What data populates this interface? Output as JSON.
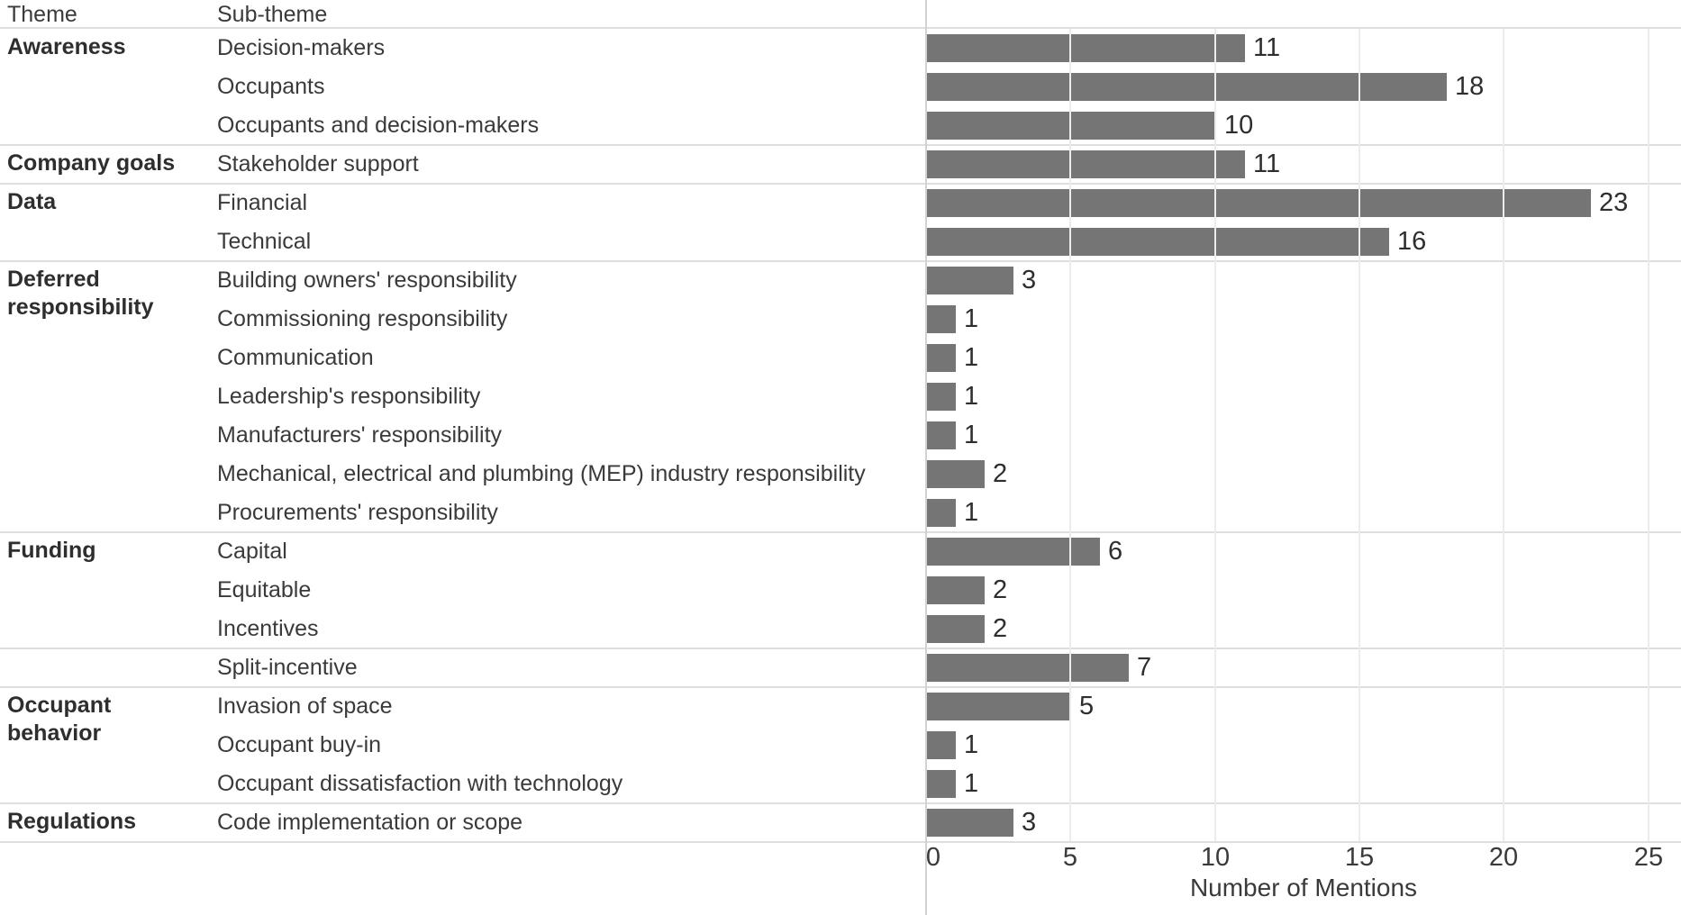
{
  "table": {
    "columns": [
      "Theme",
      "Sub-theme"
    ]
  },
  "chart_data": {
    "type": "bar",
    "orientation": "horizontal",
    "title": "",
    "xlabel": "Number of Mentions",
    "ylabel": "",
    "xlim": [
      0,
      25
    ],
    "x_ticks": [
      0,
      5,
      10,
      15,
      20,
      25
    ],
    "grid": "vertical-light",
    "bar_color": "#757575",
    "rows": [
      {
        "theme": "Awareness",
        "subtheme": "Decision-makers",
        "value": 11,
        "group_start": true
      },
      {
        "theme": "",
        "subtheme": "Occupants",
        "value": 18,
        "group_start": false
      },
      {
        "theme": "",
        "subtheme": "Occupants and decision-makers",
        "value": 10,
        "group_start": false
      },
      {
        "theme": "Company goals",
        "subtheme": "Stakeholder support",
        "value": 11,
        "group_start": true
      },
      {
        "theme": "Data",
        "subtheme": "Financial",
        "value": 23,
        "group_start": true
      },
      {
        "theme": "",
        "subtheme": "Technical",
        "value": 16,
        "group_start": false
      },
      {
        "theme": "Deferred responsibility",
        "subtheme": "Building owners' responsibility",
        "value": 3,
        "group_start": true
      },
      {
        "theme": "",
        "subtheme": "Commissioning responsibility",
        "value": 1,
        "group_start": false
      },
      {
        "theme": "",
        "subtheme": "Communication",
        "value": 1,
        "group_start": false
      },
      {
        "theme": "",
        "subtheme": "Leadership's responsibility",
        "value": 1,
        "group_start": false
      },
      {
        "theme": "",
        "subtheme": "Manufacturers' responsibility",
        "value": 1,
        "group_start": false
      },
      {
        "theme": "",
        "subtheme": "Mechanical, electrical and plumbing (MEP) industry responsibility",
        "value": 2,
        "group_start": false
      },
      {
        "theme": "",
        "subtheme": "Procurements' responsibility",
        "value": 1,
        "group_start": false
      },
      {
        "theme": "Funding",
        "subtheme": "Capital",
        "value": 6,
        "group_start": true
      },
      {
        "theme": "",
        "subtheme": "Equitable",
        "value": 2,
        "group_start": false
      },
      {
        "theme": "",
        "subtheme": "Incentives",
        "value": 2,
        "group_start": false
      },
      {
        "theme": "",
        "subtheme": "Split-incentive",
        "value": 7,
        "group_start": true
      },
      {
        "theme": "Occupant behavior",
        "subtheme": "Invasion of space",
        "value": 5,
        "group_start": true
      },
      {
        "theme": "",
        "subtheme": "Occupant buy-in",
        "value": 1,
        "group_start": false
      },
      {
        "theme": "",
        "subtheme": "Occupant dissatisfaction with technology",
        "value": 1,
        "group_start": false
      },
      {
        "theme": "Regulations",
        "subtheme": "Code implementation or scope",
        "value": 3,
        "group_start": true
      }
    ]
  }
}
